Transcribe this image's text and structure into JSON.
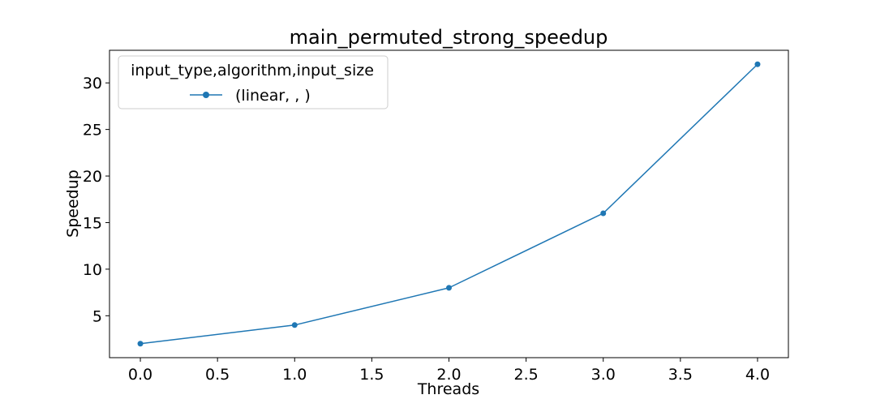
{
  "chart_data": {
    "type": "line",
    "title": "main_permuted_strong_speedup",
    "xlabel": "Threads",
    "ylabel": "Speedup",
    "x": [
      0,
      1,
      2,
      3,
      4
    ],
    "xlim": [
      -0.2,
      4.2
    ],
    "ylim": [
      0.5,
      33.5
    ],
    "xticks": [
      0.0,
      0.5,
      1.0,
      1.5,
      2.0,
      2.5,
      3.0,
      3.5,
      4.0
    ],
    "xtick_labels": [
      "0.0",
      "0.5",
      "1.0",
      "1.5",
      "2.0",
      "2.5",
      "3.0",
      "3.5",
      "4.0"
    ],
    "yticks": [
      5,
      10,
      15,
      20,
      25,
      30
    ],
    "ytick_labels": [
      "5",
      "10",
      "15",
      "20",
      "25",
      "30"
    ],
    "grid": false,
    "legend": {
      "title": "input_type,algorithm,input_size",
      "placement": "top-left"
    },
    "series": [
      {
        "name": "(linear, , )",
        "values": [
          2,
          4,
          8,
          16,
          32
        ],
        "color": "#1f77b4",
        "marker": "circle"
      }
    ]
  }
}
